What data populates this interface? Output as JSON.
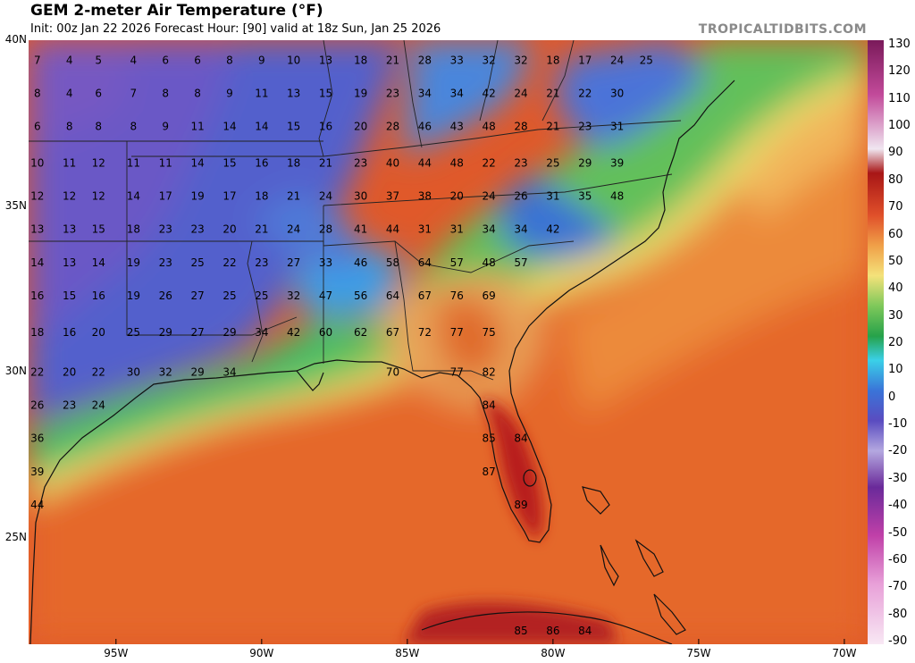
{
  "header": {
    "title": "GEM 2-meter Air Temperature (°F)",
    "subtitle": "Init: 00z Jan 22 2026   Forecast Hour: [90]   valid at 18z Sun, Jan 25 2026",
    "brand": "TROPICALTIDBITS.COM"
  },
  "axes": {
    "lat_labels": [
      "40N",
      "35N",
      "30N",
      "25N"
    ],
    "lon_labels": [
      "95W",
      "90W",
      "85W",
      "80W",
      "75W",
      "70W"
    ]
  },
  "colorbar": {
    "ticks": [
      "130",
      "120",
      "110",
      "100",
      "90",
      "80",
      "70",
      "60",
      "50",
      "40",
      "30",
      "20",
      "10",
      "0",
      "-10",
      "-20",
      "-30",
      "-40",
      "-50",
      "-60",
      "-70",
      "-80",
      "-90"
    ]
  },
  "stations": [
    {
      "lon": -97.7,
      "lat": 39.4,
      "t": "7"
    },
    {
      "lon": -96.6,
      "lat": 39.4,
      "t": "4"
    },
    {
      "lon": -95.6,
      "lat": 39.4,
      "t": "5"
    },
    {
      "lon": -94.4,
      "lat": 39.4,
      "t": "4"
    },
    {
      "lon": -93.3,
      "lat": 39.4,
      "t": "6"
    },
    {
      "lon": -92.2,
      "lat": 39.4,
      "t": "6"
    },
    {
      "lon": -91.1,
      "lat": 39.4,
      "t": "8"
    },
    {
      "lon": -90.0,
      "lat": 39.4,
      "t": "9"
    },
    {
      "lon": -88.9,
      "lat": 39.4,
      "t": "10"
    },
    {
      "lon": -87.8,
      "lat": 39.4,
      "t": "13"
    },
    {
      "lon": -86.6,
      "lat": 39.4,
      "t": "18"
    },
    {
      "lon": -85.5,
      "lat": 39.4,
      "t": "21"
    },
    {
      "lon": -84.4,
      "lat": 39.4,
      "t": "28"
    },
    {
      "lon": -83.3,
      "lat": 39.4,
      "t": "33"
    },
    {
      "lon": -82.2,
      "lat": 39.4,
      "t": "32"
    },
    {
      "lon": -81.1,
      "lat": 39.4,
      "t": "32"
    },
    {
      "lon": -80.0,
      "lat": 39.4,
      "t": "18"
    },
    {
      "lon": -78.9,
      "lat": 39.4,
      "t": "17"
    },
    {
      "lon": -77.8,
      "lat": 39.4,
      "t": "24"
    },
    {
      "lon": -76.8,
      "lat": 39.4,
      "t": "25"
    },
    {
      "lon": -97.7,
      "lat": 38.4,
      "t": "8"
    },
    {
      "lon": -96.6,
      "lat": 38.4,
      "t": "4"
    },
    {
      "lon": -95.6,
      "lat": 38.4,
      "t": "6"
    },
    {
      "lon": -94.4,
      "lat": 38.4,
      "t": "7"
    },
    {
      "lon": -93.3,
      "lat": 38.4,
      "t": "8"
    },
    {
      "lon": -92.2,
      "lat": 38.4,
      "t": "8"
    },
    {
      "lon": -91.1,
      "lat": 38.4,
      "t": "9"
    },
    {
      "lon": -90.0,
      "lat": 38.4,
      "t": "11"
    },
    {
      "lon": -88.9,
      "lat": 38.4,
      "t": "13"
    },
    {
      "lon": -87.8,
      "lat": 38.4,
      "t": "15"
    },
    {
      "lon": -86.6,
      "lat": 38.4,
      "t": "19"
    },
    {
      "lon": -85.5,
      "lat": 38.4,
      "t": "23"
    },
    {
      "lon": -84.4,
      "lat": 38.4,
      "t": "34"
    },
    {
      "lon": -83.3,
      "lat": 38.4,
      "t": "34"
    },
    {
      "lon": -82.2,
      "lat": 38.4,
      "t": "42"
    },
    {
      "lon": -81.1,
      "lat": 38.4,
      "t": "24"
    },
    {
      "lon": -80.0,
      "lat": 38.4,
      "t": "21"
    },
    {
      "lon": -78.9,
      "lat": 38.4,
      "t": "22"
    },
    {
      "lon": -77.8,
      "lat": 38.4,
      "t": "30"
    },
    {
      "lon": -97.7,
      "lat": 37.4,
      "t": "6"
    },
    {
      "lon": -96.6,
      "lat": 37.4,
      "t": "8"
    },
    {
      "lon": -95.6,
      "lat": 37.4,
      "t": "8"
    },
    {
      "lon": -94.4,
      "lat": 37.4,
      "t": "8"
    },
    {
      "lon": -93.3,
      "lat": 37.4,
      "t": "9"
    },
    {
      "lon": -92.2,
      "lat": 37.4,
      "t": "11"
    },
    {
      "lon": -91.1,
      "lat": 37.4,
      "t": "14"
    },
    {
      "lon": -90.0,
      "lat": 37.4,
      "t": "14"
    },
    {
      "lon": -88.9,
      "lat": 37.4,
      "t": "15"
    },
    {
      "lon": -87.8,
      "lat": 37.4,
      "t": "16"
    },
    {
      "lon": -86.6,
      "lat": 37.4,
      "t": "20"
    },
    {
      "lon": -85.5,
      "lat": 37.4,
      "t": "28"
    },
    {
      "lon": -84.4,
      "lat": 37.4,
      "t": "46"
    },
    {
      "lon": -83.3,
      "lat": 37.4,
      "t": "43"
    },
    {
      "lon": -82.2,
      "lat": 37.4,
      "t": "48"
    },
    {
      "lon": -81.1,
      "lat": 37.4,
      "t": "28"
    },
    {
      "lon": -80.0,
      "lat": 37.4,
      "t": "21"
    },
    {
      "lon": -78.9,
      "lat": 37.4,
      "t": "23"
    },
    {
      "lon": -77.8,
      "lat": 37.4,
      "t": "31"
    },
    {
      "lon": -97.7,
      "lat": 36.3,
      "t": "10"
    },
    {
      "lon": -96.6,
      "lat": 36.3,
      "t": "11"
    },
    {
      "lon": -95.6,
      "lat": 36.3,
      "t": "12"
    },
    {
      "lon": -94.4,
      "lat": 36.3,
      "t": "11"
    },
    {
      "lon": -93.3,
      "lat": 36.3,
      "t": "11"
    },
    {
      "lon": -92.2,
      "lat": 36.3,
      "t": "14"
    },
    {
      "lon": -91.1,
      "lat": 36.3,
      "t": "15"
    },
    {
      "lon": -90.0,
      "lat": 36.3,
      "t": "16"
    },
    {
      "lon": -88.9,
      "lat": 36.3,
      "t": "18"
    },
    {
      "lon": -87.8,
      "lat": 36.3,
      "t": "21"
    },
    {
      "lon": -86.6,
      "lat": 36.3,
      "t": "23"
    },
    {
      "lon": -85.5,
      "lat": 36.3,
      "t": "40"
    },
    {
      "lon": -84.4,
      "lat": 36.3,
      "t": "44"
    },
    {
      "lon": -83.3,
      "lat": 36.3,
      "t": "48"
    },
    {
      "lon": -82.2,
      "lat": 36.3,
      "t": "22"
    },
    {
      "lon": -81.1,
      "lat": 36.3,
      "t": "23"
    },
    {
      "lon": -80.0,
      "lat": 36.3,
      "t": "25"
    },
    {
      "lon": -78.9,
      "lat": 36.3,
      "t": "29"
    },
    {
      "lon": -77.8,
      "lat": 36.3,
      "t": "39"
    },
    {
      "lon": -97.7,
      "lat": 35.3,
      "t": "12"
    },
    {
      "lon": -96.6,
      "lat": 35.3,
      "t": "12"
    },
    {
      "lon": -95.6,
      "lat": 35.3,
      "t": "12"
    },
    {
      "lon": -94.4,
      "lat": 35.3,
      "t": "14"
    },
    {
      "lon": -93.3,
      "lat": 35.3,
      "t": "17"
    },
    {
      "lon": -92.2,
      "lat": 35.3,
      "t": "19"
    },
    {
      "lon": -91.1,
      "lat": 35.3,
      "t": "17"
    },
    {
      "lon": -90.0,
      "lat": 35.3,
      "t": "18"
    },
    {
      "lon": -88.9,
      "lat": 35.3,
      "t": "21"
    },
    {
      "lon": -87.8,
      "lat": 35.3,
      "t": "24"
    },
    {
      "lon": -86.6,
      "lat": 35.3,
      "t": "30"
    },
    {
      "lon": -85.5,
      "lat": 35.3,
      "t": "37"
    },
    {
      "lon": -84.4,
      "lat": 35.3,
      "t": "38"
    },
    {
      "lon": -83.3,
      "lat": 35.3,
      "t": "20"
    },
    {
      "lon": -82.2,
      "lat": 35.3,
      "t": "24"
    },
    {
      "lon": -81.1,
      "lat": 35.3,
      "t": "26"
    },
    {
      "lon": -80.0,
      "lat": 35.3,
      "t": "31"
    },
    {
      "lon": -78.9,
      "lat": 35.3,
      "t": "35"
    },
    {
      "lon": -77.8,
      "lat": 35.3,
      "t": "48"
    },
    {
      "lon": -97.7,
      "lat": 34.3,
      "t": "13"
    },
    {
      "lon": -96.6,
      "lat": 34.3,
      "t": "13"
    },
    {
      "lon": -95.6,
      "lat": 34.3,
      "t": "15"
    },
    {
      "lon": -94.4,
      "lat": 34.3,
      "t": "18"
    },
    {
      "lon": -93.3,
      "lat": 34.3,
      "t": "23"
    },
    {
      "lon": -92.2,
      "lat": 34.3,
      "t": "23"
    },
    {
      "lon": -91.1,
      "lat": 34.3,
      "t": "20"
    },
    {
      "lon": -90.0,
      "lat": 34.3,
      "t": "21"
    },
    {
      "lon": -88.9,
      "lat": 34.3,
      "t": "24"
    },
    {
      "lon": -87.8,
      "lat": 34.3,
      "t": "28"
    },
    {
      "lon": -86.6,
      "lat": 34.3,
      "t": "41"
    },
    {
      "lon": -85.5,
      "lat": 34.3,
      "t": "44"
    },
    {
      "lon": -84.4,
      "lat": 34.3,
      "t": "31"
    },
    {
      "lon": -83.3,
      "lat": 34.3,
      "t": "31"
    },
    {
      "lon": -82.2,
      "lat": 34.3,
      "t": "34"
    },
    {
      "lon": -81.1,
      "lat": 34.3,
      "t": "34"
    },
    {
      "lon": -80.0,
      "lat": 34.3,
      "t": "42"
    },
    {
      "lon": -97.7,
      "lat": 33.3,
      "t": "14"
    },
    {
      "lon": -96.6,
      "lat": 33.3,
      "t": "13"
    },
    {
      "lon": -95.6,
      "lat": 33.3,
      "t": "14"
    },
    {
      "lon": -94.4,
      "lat": 33.3,
      "t": "19"
    },
    {
      "lon": -93.3,
      "lat": 33.3,
      "t": "23"
    },
    {
      "lon": -92.2,
      "lat": 33.3,
      "t": "25"
    },
    {
      "lon": -91.1,
      "lat": 33.3,
      "t": "22"
    },
    {
      "lon": -90.0,
      "lat": 33.3,
      "t": "23"
    },
    {
      "lon": -88.9,
      "lat": 33.3,
      "t": "27"
    },
    {
      "lon": -87.8,
      "lat": 33.3,
      "t": "33"
    },
    {
      "lon": -86.6,
      "lat": 33.3,
      "t": "46"
    },
    {
      "lon": -85.5,
      "lat": 33.3,
      "t": "58"
    },
    {
      "lon": -84.4,
      "lat": 33.3,
      "t": "64"
    },
    {
      "lon": -83.3,
      "lat": 33.3,
      "t": "57"
    },
    {
      "lon": -82.2,
      "lat": 33.3,
      "t": "48"
    },
    {
      "lon": -81.1,
      "lat": 33.3,
      "t": "57"
    },
    {
      "lon": -97.7,
      "lat": 32.3,
      "t": "16"
    },
    {
      "lon": -96.6,
      "lat": 32.3,
      "t": "15"
    },
    {
      "lon": -95.6,
      "lat": 32.3,
      "t": "16"
    },
    {
      "lon": -94.4,
      "lat": 32.3,
      "t": "19"
    },
    {
      "lon": -93.3,
      "lat": 32.3,
      "t": "26"
    },
    {
      "lon": -92.2,
      "lat": 32.3,
      "t": "27"
    },
    {
      "lon": -91.1,
      "lat": 32.3,
      "t": "25"
    },
    {
      "lon": -90.0,
      "lat": 32.3,
      "t": "25"
    },
    {
      "lon": -88.9,
      "lat": 32.3,
      "t": "32"
    },
    {
      "lon": -87.8,
      "lat": 32.3,
      "t": "47"
    },
    {
      "lon": -86.6,
      "lat": 32.3,
      "t": "56"
    },
    {
      "lon": -85.5,
      "lat": 32.3,
      "t": "64"
    },
    {
      "lon": -84.4,
      "lat": 32.3,
      "t": "67"
    },
    {
      "lon": -83.3,
      "lat": 32.3,
      "t": "76"
    },
    {
      "lon": -82.2,
      "lat": 32.3,
      "t": "69"
    },
    {
      "lon": -97.7,
      "lat": 31.2,
      "t": "18"
    },
    {
      "lon": -96.6,
      "lat": 31.2,
      "t": "16"
    },
    {
      "lon": -95.6,
      "lat": 31.2,
      "t": "20"
    },
    {
      "lon": -94.4,
      "lat": 31.2,
      "t": "25"
    },
    {
      "lon": -93.3,
      "lat": 31.2,
      "t": "29"
    },
    {
      "lon": -92.2,
      "lat": 31.2,
      "t": "27"
    },
    {
      "lon": -91.1,
      "lat": 31.2,
      "t": "29"
    },
    {
      "lon": -90.0,
      "lat": 31.2,
      "t": "34"
    },
    {
      "lon": -88.9,
      "lat": 31.2,
      "t": "42"
    },
    {
      "lon": -87.8,
      "lat": 31.2,
      "t": "60"
    },
    {
      "lon": -86.6,
      "lat": 31.2,
      "t": "62"
    },
    {
      "lon": -85.5,
      "lat": 31.2,
      "t": "67"
    },
    {
      "lon": -84.4,
      "lat": 31.2,
      "t": "72"
    },
    {
      "lon": -83.3,
      "lat": 31.2,
      "t": "77"
    },
    {
      "lon": -82.2,
      "lat": 31.2,
      "t": "75"
    },
    {
      "lon": -97.7,
      "lat": 30.0,
      "t": "22"
    },
    {
      "lon": -96.6,
      "lat": 30.0,
      "t": "20"
    },
    {
      "lon": -95.6,
      "lat": 30.0,
      "t": "22"
    },
    {
      "lon": -94.4,
      "lat": 30.0,
      "t": "30"
    },
    {
      "lon": -93.3,
      "lat": 30.0,
      "t": "32"
    },
    {
      "lon": -92.2,
      "lat": 30.0,
      "t": "29"
    },
    {
      "lon": -91.1,
      "lat": 30.0,
      "t": "34"
    },
    {
      "lon": -85.5,
      "lat": 30.0,
      "t": "70"
    },
    {
      "lon": -83.3,
      "lat": 30.0,
      "t": "77"
    },
    {
      "lon": -82.2,
      "lat": 30.0,
      "t": "82"
    },
    {
      "lon": -97.7,
      "lat": 29.0,
      "t": "26"
    },
    {
      "lon": -96.6,
      "lat": 29.0,
      "t": "23"
    },
    {
      "lon": -95.6,
      "lat": 29.0,
      "t": "24"
    },
    {
      "lon": -82.2,
      "lat": 29.0,
      "t": "84"
    },
    {
      "lon": -97.7,
      "lat": 28.0,
      "t": "36"
    },
    {
      "lon": -82.2,
      "lat": 28.0,
      "t": "85"
    },
    {
      "lon": -81.1,
      "lat": 28.0,
      "t": "84"
    },
    {
      "lon": -97.7,
      "lat": 27.0,
      "t": "39"
    },
    {
      "lon": -82.2,
      "lat": 27.0,
      "t": "87"
    },
    {
      "lon": -97.7,
      "lat": 26.0,
      "t": "44"
    },
    {
      "lon": -81.1,
      "lat": 26.0,
      "t": "89"
    },
    {
      "lon": -81.1,
      "lat": 22.2,
      "t": "85"
    },
    {
      "lon": -80.0,
      "lat": 22.2,
      "t": "86"
    },
    {
      "lon": -78.9,
      "lat": 22.2,
      "t": "84"
    }
  ]
}
